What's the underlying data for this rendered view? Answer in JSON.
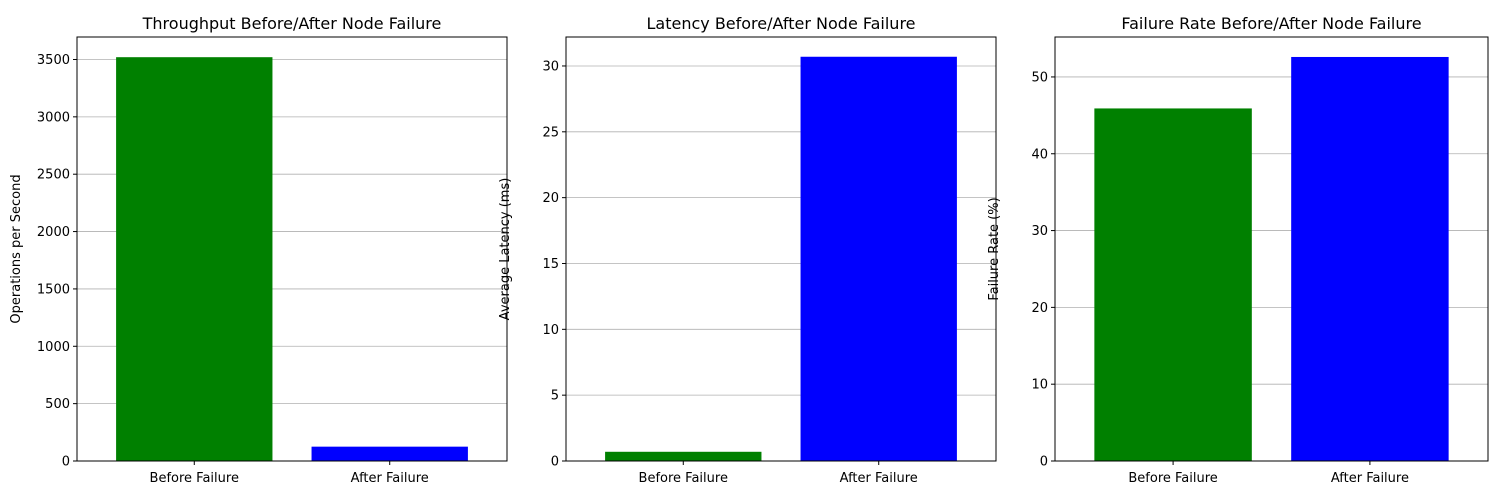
{
  "chart_data": [
    {
      "type": "bar",
      "title": "Throughput Before/After Node Failure",
      "xlabel": "",
      "ylabel": "Operations per Second",
      "categories": [
        "Before Failure",
        "After Failure"
      ],
      "values": [
        3520,
        125
      ],
      "colors": [
        "#008000",
        "#0000ff"
      ],
      "ylim": [
        0,
        3696
      ],
      "yticks": [
        0,
        500,
        1000,
        1500,
        2000,
        2500,
        3000,
        3500
      ],
      "grid": "y"
    },
    {
      "type": "bar",
      "title": "Latency Before/After Node Failure",
      "xlabel": "",
      "ylabel": "Average Latency (ms)",
      "categories": [
        "Before Failure",
        "After Failure"
      ],
      "values": [
        0.7,
        30.7
      ],
      "colors": [
        "#008000",
        "#0000ff"
      ],
      "ylim": [
        0,
        32.2
      ],
      "yticks": [
        0,
        5,
        10,
        15,
        20,
        25,
        30
      ],
      "grid": "y"
    },
    {
      "type": "bar",
      "title": "Failure Rate Before/After Node Failure",
      "xlabel": "",
      "ylabel": "Failure Rate (%)",
      "categories": [
        "Before Failure",
        "After Failure"
      ],
      "values": [
        45.9,
        52.6
      ],
      "colors": [
        "#008000",
        "#0000ff"
      ],
      "ylim": [
        0,
        55.2
      ],
      "yticks": [
        0,
        10,
        20,
        30,
        40,
        50
      ],
      "grid": "y"
    }
  ]
}
